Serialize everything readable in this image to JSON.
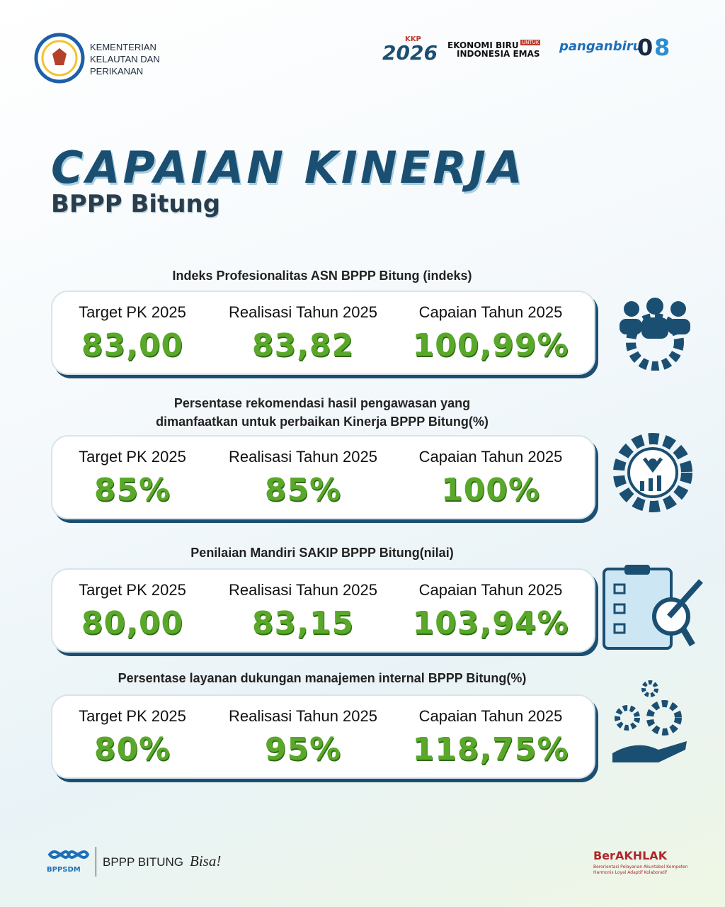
{
  "header": {
    "ministry": [
      "KEMENTERIAN",
      "KELAUTAN DAN",
      "PERIKANAN"
    ],
    "logos": {
      "kkp": "KKP",
      "year": "2026",
      "ekonomi": "EKONOMI BIRU",
      "untuk": "UNTUK",
      "emas": "INDONESIA EMAS",
      "pangan": "panganbiru",
      "zero": "0",
      "eight": "8"
    }
  },
  "title": "CAPAIAN KINERJA",
  "subtitle": "BPPP Bitung",
  "sections": [
    {
      "label": [
        "Indeks Profesionalitas ASN BPPP Bitung (indeks)"
      ],
      "items": [
        {
          "heading": "Target PK 2025",
          "value": "83,00"
        },
        {
          "heading": "Realisasi Tahun 2025",
          "value": "83,82"
        },
        {
          "heading": "Capaian Tahun 2025",
          "value": "100,99%"
        }
      ]
    },
    {
      "label": [
        "Persentase rekomendasi hasil pengawasan yang",
        "dimanfaatkan untuk perbaikan Kinerja BPPP Bitung(%)"
      ],
      "items": [
        {
          "heading": "Target PK 2025",
          "value": "85%"
        },
        {
          "heading": "Realisasi Tahun 2025",
          "value": "85%"
        },
        {
          "heading": "Capaian Tahun 2025",
          "value": "100%"
        }
      ]
    },
    {
      "label": [
        "Penilaian Mandiri SAKIP BPPP Bitung(nilai)"
      ],
      "items": [
        {
          "heading": "Target PK 2025",
          "value": "80,00"
        },
        {
          "heading": "Realisasi Tahun 2025",
          "value": "83,15"
        },
        {
          "heading": "Capaian Tahun 2025",
          "value": "103,94%"
        }
      ]
    },
    {
      "label": [
        "Persentase layanan dukungan manajemen internal BPPP Bitung(%)"
      ],
      "items": [
        {
          "heading": "Target PK 2025",
          "value": "80%"
        },
        {
          "heading": "Realisasi Tahun 2025",
          "value": "95%"
        },
        {
          "heading": "Capaian Tahun 2025",
          "value": "118,75%"
        }
      ]
    }
  ],
  "footer": {
    "bppsdm": "BPPSDM",
    "tagline": "BPPP BITUNG",
    "bisa": "Bisa!",
    "akhlak": "BerAKHLAK",
    "akhlak_note": [
      "Berorientasi Pelayanan Akuntabel Kompeten",
      "Harmonis Loyal Adaptif Kolaboratif"
    ]
  }
}
